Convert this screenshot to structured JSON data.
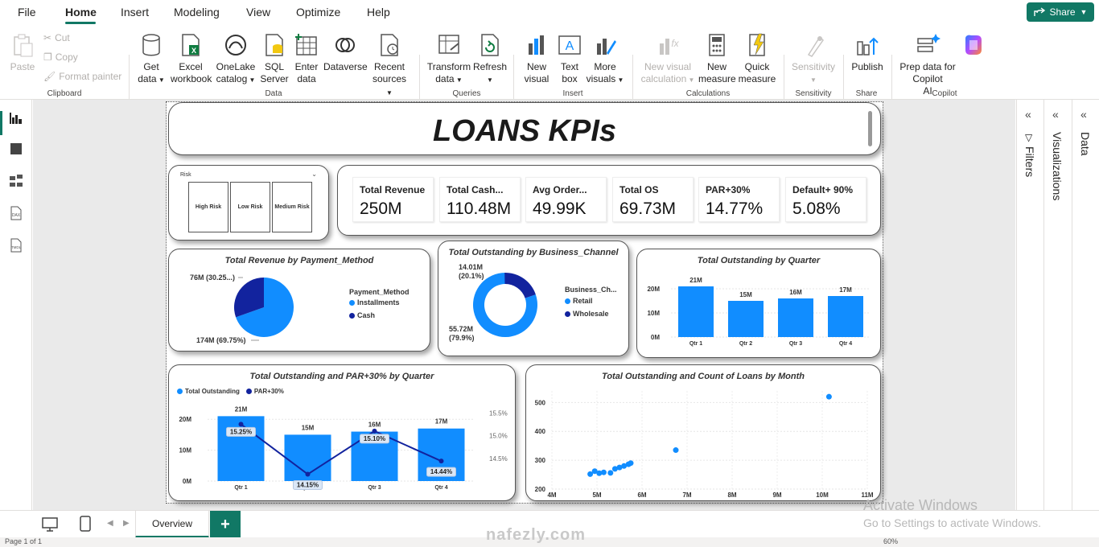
{
  "menu": {
    "items": [
      "File",
      "Home",
      "Insert",
      "Modeling",
      "View",
      "Optimize",
      "Help"
    ],
    "share": "Share"
  },
  "ribbon": {
    "paste": "Paste",
    "cut": "Cut",
    "copy": "Copy",
    "format_painter": "Format painter",
    "get_data": [
      "Get",
      "data"
    ],
    "excel": [
      "Excel",
      "workbook"
    ],
    "onelake": [
      "OneLake",
      "catalog"
    ],
    "sql": [
      "SQL",
      "Server"
    ],
    "enter_data": [
      "Enter",
      "data"
    ],
    "dataverse": "Dataverse",
    "recent": [
      "Recent",
      "sources"
    ],
    "transform": [
      "Transform",
      "data"
    ],
    "refresh": "Refresh",
    "new_visual": [
      "New",
      "visual"
    ],
    "text_box": [
      "Text",
      "box"
    ],
    "more_visuals": [
      "More",
      "visuals"
    ],
    "new_visual_calc": [
      "New visual",
      "calculation"
    ],
    "new_measure": [
      "New",
      "measure"
    ],
    "quick_measure": [
      "Quick",
      "measure"
    ],
    "sensitivity": "Sensitivity",
    "publish": "Publish",
    "prep_copilot": [
      "Prep data for Copilot",
      "AI"
    ],
    "groups": [
      "Clipboard",
      "Data",
      "Queries",
      "Insert",
      "Calculations",
      "Sensitivity",
      "Share",
      "Copilot"
    ]
  },
  "panes": {
    "filters": "Filters",
    "visualizations": "Visualizations",
    "data": "Data"
  },
  "report": {
    "title": "LOANS KPIs",
    "slicer": {
      "label": "Risk",
      "options": [
        "High Risk",
        "Low Risk",
        "Medium Risk"
      ]
    },
    "kpis": [
      {
        "label": "Total Revenue",
        "value": "250M"
      },
      {
        "label": "Total Cash...",
        "value": "110.48M"
      },
      {
        "label": "Avg Order...",
        "value": "49.99K"
      },
      {
        "label": "Total OS",
        "value": "69.73M"
      },
      {
        "label": "PAR+30%",
        "value": "14.77%"
      },
      {
        "label": "Default+ 90%",
        "value": "5.08%"
      }
    ]
  },
  "chart_data": [
    {
      "type": "pie",
      "title": "Total Revenue by Payment_Method",
      "legend_title": "Payment_Method",
      "categories": [
        "Installments",
        "Cash"
      ],
      "values": [
        174,
        76
      ],
      "labels": [
        "174M (69.75%)",
        "76M (30.25...)"
      ],
      "colors": [
        "#118DFF",
        "#12239E"
      ],
      "legend": "right"
    },
    {
      "type": "pie",
      "title": "Total Outstanding by Business_Channel",
      "legend_title": "Business_Ch...",
      "categories": [
        "Retail",
        "Wholesale"
      ],
      "values": [
        55.72,
        14.01
      ],
      "labels": [
        "55.72M (79.9%)",
        "14.01M (20.1%)"
      ],
      "colors": [
        "#118DFF",
        "#12239E"
      ],
      "legend": "right"
    },
    {
      "type": "bar",
      "title": "Total Outstanding by Quarter",
      "categories": [
        "Qtr 1",
        "Qtr 2",
        "Qtr 3",
        "Qtr 4"
      ],
      "values": [
        21,
        15,
        16,
        17
      ],
      "data_labels": [
        "21M",
        "15M",
        "16M",
        "17M"
      ],
      "yticks": [
        "0M",
        "10M",
        "20M"
      ],
      "ylim": [
        0,
        25
      ]
    },
    {
      "type": "bar",
      "title": "Total Outstanding and PAR+30% by Quarter",
      "categories": [
        "Qtr 1",
        "Qtr 2",
        "Qtr 3",
        "Qtr 4"
      ],
      "series": [
        {
          "name": "Total Outstanding",
          "values": [
            21,
            15,
            16,
            17
          ],
          "labels": [
            "21M",
            "15M",
            "16M",
            "17M"
          ],
          "color": "#118DFF"
        },
        {
          "name": "PAR+30%",
          "values": [
            15.25,
            14.15,
            15.1,
            14.44
          ],
          "labels": [
            "15.25%",
            "14.15%",
            "15.10%",
            "14.44%"
          ],
          "color": "#12239E"
        }
      ],
      "yticks_left": [
        "0M",
        "10M",
        "20M"
      ],
      "yticks_right": [
        "14.5%",
        "15.0%",
        "15.5%"
      ],
      "ylim_left": [
        0,
        25
      ],
      "ylim_right": [
        14.0,
        15.7
      ]
    },
    {
      "type": "scatter",
      "title": "Total Outstanding and Count of Loans by Month",
      "xticks": [
        "4M",
        "5M",
        "6M",
        "7M",
        "8M",
        "9M",
        "10M",
        "11M"
      ],
      "yticks": [
        "200",
        "300",
        "400",
        "500"
      ],
      "xlim": [
        4,
        11
      ],
      "ylim": [
        200,
        540
      ],
      "x": [
        4.85,
        4.95,
        5.05,
        5.15,
        5.3,
        5.4,
        5.5,
        5.6,
        5.7,
        5.75,
        6.75,
        10.15
      ],
      "y": [
        252,
        262,
        255,
        258,
        256,
        270,
        275,
        280,
        286,
        290,
        335,
        520
      ]
    }
  ],
  "tabs": {
    "overview": "Overview",
    "add": "+"
  },
  "status": {
    "page": "Page 1 of 1",
    "zoom": "60%"
  },
  "overlay": {
    "activate_title": "Activate Windows",
    "activate_sub": "Go to Settings to activate Windows.",
    "brand": "nafezly.com"
  }
}
